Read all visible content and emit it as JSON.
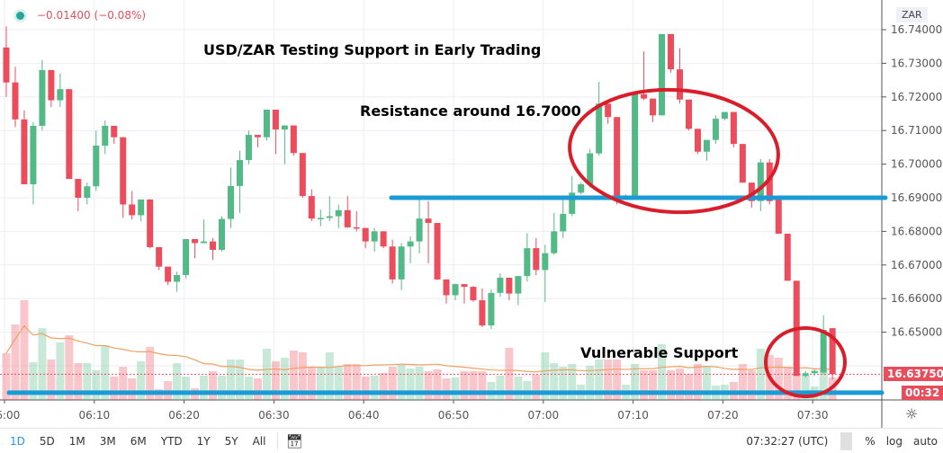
{
  "legend": {
    "change": "−0.01400 (−0.08%)",
    "dot_color": "#26a69a"
  },
  "price_axis": {
    "currency": "ZAR",
    "ticks": [
      "16.74000",
      "16.73000",
      "16.72000",
      "16.71000",
      "16.70000",
      "16.69000",
      "16.68000",
      "16.67000",
      "16.66000",
      "16.65000"
    ],
    "last_price": "16.63750",
    "countdown": "00:32"
  },
  "time_axis": {
    "ticks": [
      "06:00",
      "06:10",
      "06:20",
      "06:30",
      "06:40",
      "06:50",
      "07:00",
      "07:10",
      "07:20",
      "07:30"
    ],
    "settings_icon": "gear-icon"
  },
  "annotations": {
    "title": "USD/ZAR Testing Support in Early Trading",
    "resistance": "Resistance around 16.7000",
    "support": "Vulnerable Support"
  },
  "toolbar": {
    "timeframes": [
      "1D",
      "5D",
      "1M",
      "3M",
      "6M",
      "YTD",
      "1Y",
      "5Y",
      "All"
    ],
    "active": "1D",
    "goto_icon": "calendar-goto-icon",
    "clock": "07:32:27 (UTC)",
    "percent": "%",
    "log": "log",
    "auto": "auto"
  },
  "colors": {
    "up": "#53b987",
    "down": "#eb4d5c",
    "line": "#1a9bd7",
    "ellipse": "#d81e2a",
    "ma": "#f0a060"
  },
  "chart_data": {
    "type": "candlestick",
    "title": "USD/ZAR Testing Support in Early Trading",
    "interval": "1 minute",
    "start_time": "06:00",
    "ylim": [
      16.628,
      16.749
    ],
    "grid": true,
    "ohlc": [
      [
        16.7347,
        16.741,
        16.72,
        16.7243
      ],
      [
        16.7243,
        16.729,
        16.711,
        16.7133
      ],
      [
        16.7133,
        16.716,
        16.694,
        16.694
      ],
      [
        16.694,
        16.7125,
        16.688,
        16.7114
      ],
      [
        16.7114,
        16.731,
        16.71,
        16.728
      ],
      [
        16.728,
        16.728,
        16.717,
        16.719
      ],
      [
        16.719,
        16.727,
        16.717,
        16.7223
      ],
      [
        16.7223,
        16.7223,
        16.6956,
        16.6956
      ],
      [
        16.6956,
        16.6956,
        16.686,
        16.69
      ],
      [
        16.69,
        16.6945,
        16.688,
        16.6934
      ],
      [
        16.6934,
        16.71,
        16.692,
        16.7055
      ],
      [
        16.7055,
        16.713,
        16.703,
        16.7114
      ],
      [
        16.7114,
        16.7114,
        16.706,
        16.708
      ],
      [
        16.708,
        16.708,
        16.684,
        16.688
      ],
      [
        16.688,
        16.692,
        16.6835,
        16.6848
      ],
      [
        16.6848,
        16.6895,
        16.683,
        16.6895
      ],
      [
        16.6895,
        16.6895,
        16.675,
        16.6753
      ],
      [
        16.6753,
        16.6753,
        16.6685,
        16.6695
      ],
      [
        16.6695,
        16.6695,
        16.664,
        16.665
      ],
      [
        16.665,
        16.668,
        16.662,
        16.667
      ],
      [
        16.667,
        16.6777,
        16.666,
        16.6777
      ],
      [
        16.6777,
        16.6777,
        16.672,
        16.6765
      ],
      [
        16.6765,
        16.6835,
        16.6765,
        16.677
      ],
      [
        16.677,
        16.678,
        16.6715,
        16.6745
      ],
      [
        16.6745,
        16.6845,
        16.674,
        16.6837
      ],
      [
        16.6837,
        16.699,
        16.681,
        16.6935
      ],
      [
        16.6935,
        16.704,
        16.6855,
        16.7012
      ],
      [
        16.7012,
        16.71,
        16.7,
        16.7087
      ],
      [
        16.7087,
        16.7087,
        16.705,
        16.708
      ],
      [
        16.708,
        16.7162,
        16.707,
        16.7162
      ],
      [
        16.7162,
        16.7162,
        16.703,
        16.7103
      ],
      [
        16.7103,
        16.7115,
        16.7,
        16.7115
      ],
      [
        16.7115,
        16.7115,
        16.7025,
        16.7033
      ],
      [
        16.7033,
        16.7033,
        16.69,
        16.6905
      ],
      [
        16.6905,
        16.6925,
        16.683,
        16.6838
      ],
      [
        16.6838,
        16.6865,
        16.6815,
        16.684
      ],
      [
        16.684,
        16.6905,
        16.683,
        16.6845
      ],
      [
        16.6845,
        16.688,
        16.681,
        16.6863
      ],
      [
        16.6863,
        16.6905,
        16.681,
        16.6812
      ],
      [
        16.6812,
        16.686,
        16.68,
        16.6808
      ],
      [
        16.681,
        16.681,
        16.675,
        16.677
      ],
      [
        16.677,
        16.681,
        16.674,
        16.68
      ],
      [
        16.68,
        16.68,
        16.675,
        16.6755
      ],
      [
        16.6755,
        16.6775,
        16.6645,
        16.6657
      ],
      [
        16.6657,
        16.6765,
        16.6625,
        16.6755
      ],
      [
        16.6755,
        16.6785,
        16.6705,
        16.677
      ],
      [
        16.677,
        16.6905,
        16.6735,
        16.6838
      ],
      [
        16.6838,
        16.689,
        16.6705,
        16.6825
      ],
      [
        16.6825,
        16.6825,
        16.6655,
        16.6657
      ],
      [
        16.6657,
        16.6657,
        16.6585,
        16.661
      ],
      [
        16.661,
        16.6645,
        16.6595,
        16.6643
      ],
      [
        16.6643,
        16.6643,
        16.6585,
        16.6635
      ],
      [
        16.6635,
        16.6637,
        16.659,
        16.6595
      ],
      [
        16.6595,
        16.663,
        16.6515,
        16.652
      ],
      [
        16.652,
        16.6627,
        16.651,
        16.6617
      ],
      [
        16.6617,
        16.6675,
        16.6605,
        16.6662
      ],
      [
        16.6662,
        16.6662,
        16.6595,
        16.6615
      ],
      [
        16.6615,
        16.6667,
        16.658,
        16.6667
      ],
      [
        16.6667,
        16.6795,
        16.665,
        16.675
      ],
      [
        16.675,
        16.678,
        16.667,
        16.6685
      ],
      [
        16.6685,
        16.676,
        16.659,
        16.6735
      ],
      [
        16.6735,
        16.6855,
        16.673,
        16.68
      ],
      [
        16.68,
        16.6895,
        16.678,
        16.6852
      ],
      [
        16.6852,
        16.6965,
        16.6845,
        16.6915
      ],
      [
        16.6915,
        16.6945,
        16.691,
        16.694
      ],
      [
        16.694,
        16.7045,
        16.693,
        16.7032
      ],
      [
        16.7032,
        16.7245,
        16.7025,
        16.718
      ],
      [
        16.718,
        16.718,
        16.712,
        16.714
      ],
      [
        16.714,
        16.714,
        16.688,
        16.69
      ],
      [
        16.69,
        16.691,
        16.6895,
        16.6905
      ],
      [
        16.6905,
        16.7208,
        16.6905,
        16.7208
      ],
      [
        16.7208,
        16.7335,
        16.719,
        16.7195
      ],
      [
        16.7195,
        16.7195,
        16.7125,
        16.7145
      ],
      [
        16.7145,
        16.7387,
        16.7145,
        16.7387
      ],
      [
        16.7387,
        16.7387,
        16.7272,
        16.7282
      ],
      [
        16.7282,
        16.7345,
        16.718,
        16.7192
      ],
      [
        16.7192,
        16.7192,
        16.71,
        16.7105
      ],
      [
        16.7105,
        16.7105,
        16.703,
        16.7037
      ],
      [
        16.7037,
        16.7072,
        16.701,
        16.7072
      ],
      [
        16.7072,
        16.7145,
        16.706,
        16.7135
      ],
      [
        16.7135,
        16.7155,
        16.713,
        16.7155
      ],
      [
        16.7155,
        16.7155,
        16.705,
        16.706
      ],
      [
        16.706,
        16.706,
        16.6945,
        16.6945
      ],
      [
        16.6945,
        16.6945,
        16.687,
        16.689
      ],
      [
        16.689,
        16.7015,
        16.686,
        16.7005
      ],
      [
        16.7005,
        16.7015,
        16.688,
        16.689
      ],
      [
        16.69,
        16.69,
        16.6793,
        16.6793
      ],
      [
        16.6793,
        16.6793,
        16.6653,
        16.6653
      ],
      [
        16.6653,
        16.6653,
        16.637,
        16.637
      ],
      [
        16.637,
        16.6385,
        16.6365,
        16.6378
      ],
      [
        16.6378,
        16.639,
        16.637,
        16.6385
      ],
      [
        16.638,
        16.655,
        16.6375,
        16.6507
      ],
      [
        16.6512,
        16.6512,
        16.636,
        16.6375
      ]
    ],
    "volume": [
      52,
      84,
      111,
      42,
      80,
      45,
      64,
      72,
      41,
      41,
      33,
      61,
      26,
      37,
      24,
      43,
      59,
      12,
      21,
      41,
      26,
      13,
      27,
      32,
      27,
      45,
      45,
      26,
      24,
      57,
      43,
      47,
      55,
      53,
      37,
      37,
      53,
      37,
      40,
      40,
      26,
      27,
      30,
      37,
      39,
      35,
      37,
      32,
      34,
      24,
      25,
      32,
      32,
      32,
      20,
      27,
      58,
      26,
      21,
      28,
      53,
      41,
      37,
      40,
      17,
      38,
      45,
      45,
      45,
      17,
      40,
      33,
      33,
      62,
      33,
      35,
      29,
      40,
      38,
      16,
      17,
      20,
      40,
      33,
      57,
      50,
      47,
      37,
      30,
      27,
      15,
      33,
      25
    ],
    "horizontal_lines": [
      16.69,
      16.632
    ],
    "last_price": 16.6375
  }
}
